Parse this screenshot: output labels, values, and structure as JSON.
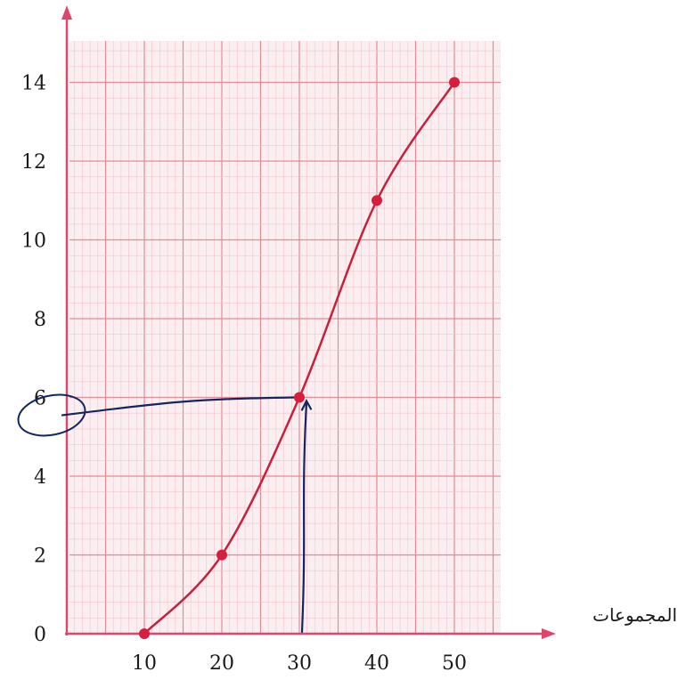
{
  "chart_data": {
    "type": "line",
    "xlabel": "المجموعات",
    "ylabel": "",
    "xlim": [
      0,
      55
    ],
    "ylim": [
      0,
      15
    ],
    "x_ticks": [
      10,
      20,
      30,
      40,
      50
    ],
    "y_ticks": [
      0,
      2,
      4,
      6,
      8,
      10,
      12,
      14
    ],
    "grid": true,
    "series": [
      {
        "x": [
          10,
          20,
          30,
          40,
          50
        ],
        "values": [
          0,
          2,
          6,
          11,
          14
        ]
      }
    ],
    "annotation": {
      "x": 30,
      "y": 6
    },
    "colors": {
      "grid_major": "#e48a95",
      "grid_minor": "#f3c4cb",
      "axes": "#e0466a",
      "curve": "#c8203a",
      "points": "#d81e3c",
      "annotation": "#13265e"
    }
  }
}
